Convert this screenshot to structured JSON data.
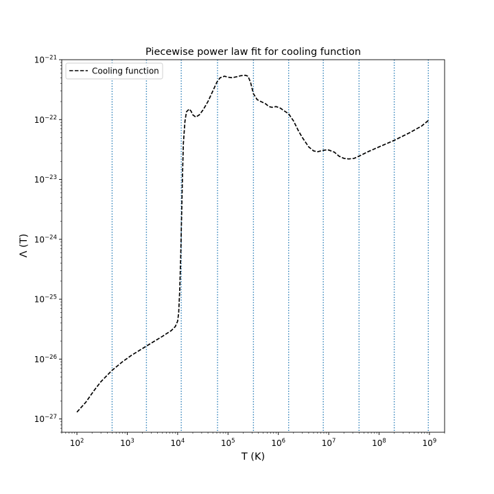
{
  "chart_data": {
    "type": "line",
    "title": "Piecewise power law fit for cooling function",
    "xlabel": "T (K)",
    "ylabel": "Λ (T)",
    "xscale": "log",
    "yscale": "log",
    "xlim": [
      50,
      2000000000.0
    ],
    "ylim": [
      6e-28,
      1e-21
    ],
    "x_tick_exponents": [
      2,
      3,
      4,
      5,
      6,
      7,
      8,
      9
    ],
    "y_tick_exponents": [
      -27,
      -26,
      -25,
      -24,
      -23,
      -22,
      -21
    ],
    "tick_base": "10",
    "grid": false,
    "legend": {
      "placement": "top-left",
      "entries": [
        "Cooling function"
      ]
    },
    "vertical_lines": {
      "style": "dotted",
      "color": "#1f77b4",
      "x": [
        500,
        2400,
        11800,
        62000,
        320000,
        1600000,
        7800000,
        40000000,
        200000000,
        950000000
      ]
    },
    "series": [
      {
        "name": "Cooling function",
        "color": "#000000",
        "style": "dashed",
        "x": [
          100,
          150,
          220,
          300,
          500,
          800,
          1200,
          2000,
          3000,
          5000,
          7500,
          9000,
          10000,
          10500,
          11000,
          11500,
          12000,
          12500,
          13000,
          14000,
          15000,
          17000,
          18500,
          20000,
          23000,
          27000,
          32000,
          40000,
          50000,
          60000,
          70000,
          85000,
          100000,
          120000,
          150000,
          180000,
          220000,
          250000,
          280000,
          320000,
          380000,
          450000,
          550000,
          650000,
          750000,
          900000,
          1100000,
          1300000,
          1600000,
          2000000,
          2500000,
          3000000,
          4000000,
          5000000,
          6000000,
          7000000,
          8500000,
          10000000,
          13000000,
          16000000,
          20000000,
          25000000,
          32000000,
          40000000,
          60000000,
          100000000,
          200000000,
          400000000,
          700000000,
          1000000000
        ],
        "y": [
          1.3e-27,
          1.9e-27,
          3e-27,
          4.2e-27,
          6.5e-27,
          9e-27,
          1.15e-26,
          1.5e-26,
          1.85e-26,
          2.4e-26,
          3e-26,
          3.5e-26,
          4.3e-26,
          6e-26,
          1.4e-25,
          5e-25,
          2.5e-24,
          1.2e-23,
          4e-23,
          9.5e-23,
          1.35e-22,
          1.5e-22,
          1.38e-22,
          1.2e-22,
          1.1e-22,
          1.2e-22,
          1.45e-22,
          2e-22,
          3e-22,
          4.2e-22,
          5e-22,
          5.3e-22,
          5.1e-22,
          5e-22,
          5.2e-22,
          5.4e-22,
          5.5e-22,
          5.3e-22,
          4.2e-22,
          2.7e-22,
          2.15e-22,
          2e-22,
          1.85e-22,
          1.65e-22,
          1.6e-22,
          1.65e-22,
          1.55e-22,
          1.4e-22,
          1.25e-22,
          9.5e-23,
          6.5e-23,
          5e-23,
          3.5e-23,
          3e-23,
          2.9e-23,
          3e-23,
          3.1e-23,
          3.1e-23,
          2.85e-23,
          2.45e-23,
          2.25e-23,
          2.2e-23,
          2.25e-23,
          2.45e-23,
          2.9e-23,
          3.5e-23,
          4.5e-23,
          6e-23,
          7.8e-23,
          1e-22
        ]
      }
    ]
  }
}
